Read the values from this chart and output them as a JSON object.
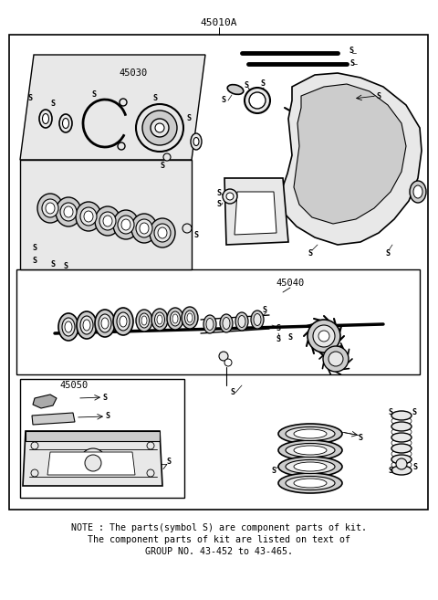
{
  "title": "45010A",
  "bg_color": "#ffffff",
  "note_line1": "NOTE : The parts(symbol S) are component parts of kit.",
  "note_line2": "The component parts of kit are listed on text of",
  "note_line3": "GROUP NO. 43-452 to 43-465.",
  "label_45030": "45030",
  "label_45040": "45040",
  "label_45050": "45050",
  "fig_width": 4.8,
  "fig_height": 6.57,
  "dpi": 100
}
